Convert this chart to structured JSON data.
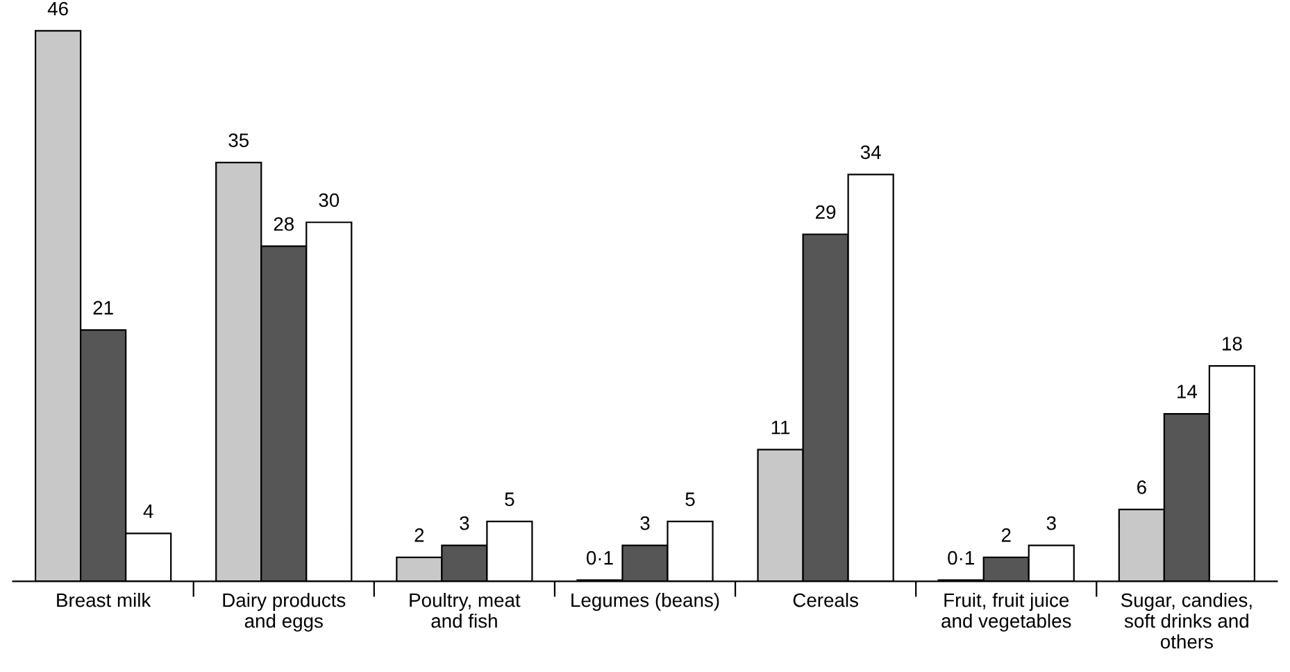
{
  "chart_data": {
    "type": "bar",
    "categories": [
      "Breast milk",
      "Dairy products\nand eggs",
      "Poultry, meat\nand fish",
      "Legumes (beans)",
      "Cereals",
      "Fruit, fruit juice\nand vegetables",
      "Sugar, candies,\nsoft drinks and\nothers"
    ],
    "series": [
      {
        "color": "#c8c8c8",
        "values": [
          46,
          35,
          2,
          0.1,
          11,
          0.1,
          6
        ],
        "value_labels": [
          "46",
          "35",
          "2",
          "0·1",
          "11",
          "0·1",
          "6"
        ]
      },
      {
        "color": "#565656",
        "values": [
          21,
          28,
          3,
          3,
          29,
          2,
          14
        ],
        "value_labels": [
          "21",
          "28",
          "3",
          "3",
          "29",
          "2",
          "14"
        ]
      },
      {
        "color": "#ffffff",
        "values": [
          4,
          30,
          5,
          5,
          34,
          3,
          18
        ],
        "value_labels": [
          "4",
          "30",
          "5",
          "5",
          "34",
          "3",
          "18"
        ]
      }
    ],
    "grid": false,
    "legend": false
  }
}
